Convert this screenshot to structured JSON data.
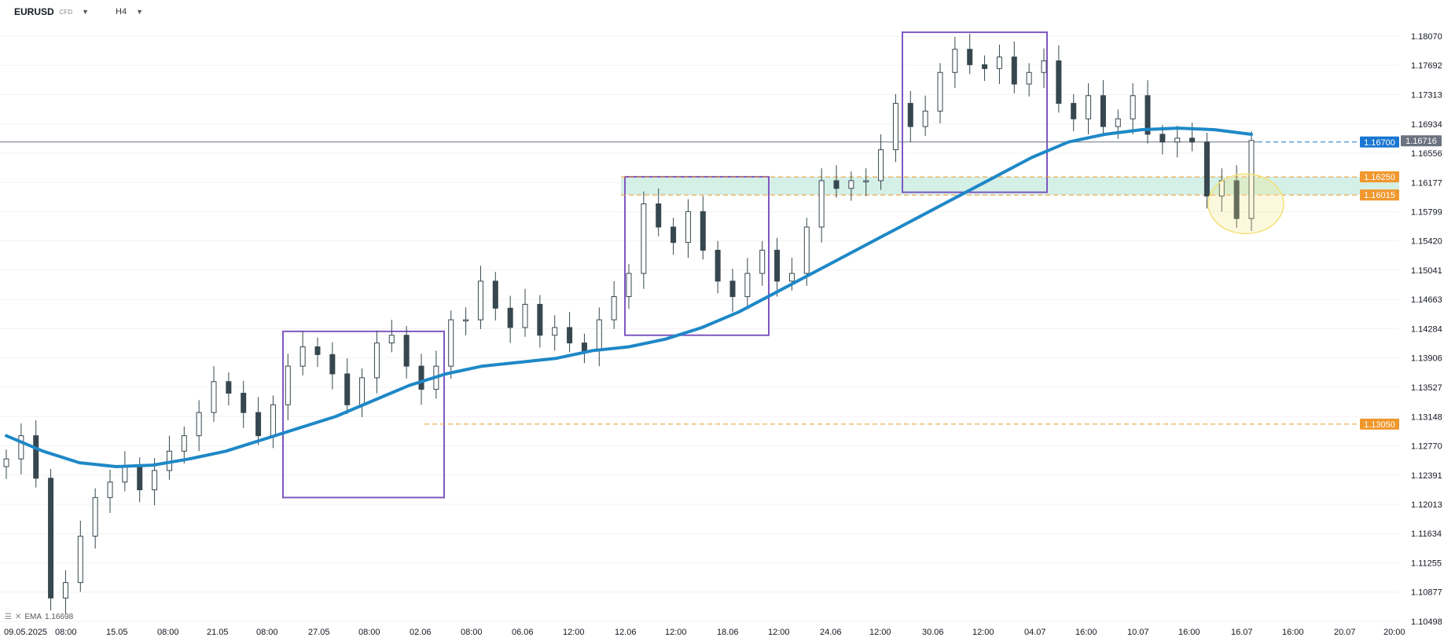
{
  "header": {
    "symbol": "EURUSD",
    "symbol_type": "CFD",
    "timeframe": "H4"
  },
  "indicator": {
    "name": "EMA",
    "value": "1.16698"
  },
  "colors": {
    "ema": "#1e88c7",
    "box": "#7e57c2",
    "level": "#f0972d",
    "zone": "#bfe8d8",
    "candle_body": "#37474f",
    "candle_up": "#ffffff",
    "current_price": "#6b7280",
    "last_price_tag": "#1976d2",
    "highlight": "#f4e27a"
  },
  "chart_data": {
    "type": "candlestick",
    "x_ticks": [
      "09.05.2025",
      "08:00",
      "15.05",
      "08:00",
      "21.05",
      "08:00",
      "27.05",
      "08:00",
      "02.06",
      "08:00",
      "06.06",
      "12:00",
      "12.06",
      "12:00",
      "18.06",
      "12:00",
      "24.06",
      "12:00",
      "30.06",
      "12:00",
      "04.07",
      "16:00",
      "10.07",
      "16:00",
      "16.07",
      "16:00",
      "20.07",
      "20:00"
    ],
    "y_ticks": [
      "1.18070",
      "1.17692",
      "1.17313",
      "1.16934",
      "1.16556",
      "1.16177",
      "1.15799",
      "1.15420",
      "1.15041",
      "1.14663",
      "1.14284",
      "1.13906",
      "1.13527",
      "1.13148",
      "1.12770",
      "1.12391",
      "1.12013",
      "1.11634",
      "1.11255",
      "1.10877",
      "1.10498"
    ],
    "ylim": [
      1.10498,
      1.1807
    ],
    "close_price": [
      1.126,
      1.129,
      1.1235,
      1.108,
      1.11,
      1.116,
      1.121,
      1.123,
      1.125,
      1.122,
      1.1245,
      1.127,
      1.129,
      1.132,
      1.136,
      1.1345,
      1.132,
      1.129,
      1.133,
      1.138,
      1.1405,
      1.1395,
      1.137,
      1.133,
      1.1365,
      1.141,
      1.142,
      1.138,
      1.135,
      1.138,
      1.144,
      1.144,
      1.149,
      1.1455,
      1.143,
      1.146,
      1.142,
      1.143,
      1.141,
      1.14,
      1.144,
      1.147,
      1.15,
      1.159,
      1.156,
      1.154,
      1.158,
      1.153,
      1.149,
      1.147,
      1.15,
      1.153,
      1.149,
      1.15,
      1.156,
      1.162,
      1.161,
      1.162,
      1.162,
      1.166,
      1.172,
      1.169,
      1.171,
      1.176,
      1.179,
      1.177,
      1.1765,
      1.178,
      1.1745,
      1.176,
      1.1775,
      1.172,
      1.17,
      1.173,
      1.169,
      1.17,
      1.173,
      1.168,
      1.167,
      1.1675,
      1.167,
      1.16,
      1.162,
      1.1571,
      1.1672
    ],
    "levels": [
      "1.16250",
      "1.16015",
      "1.13050"
    ],
    "current_price": "1.16700",
    "last_price": "1.16716",
    "ema_values": [
      1.129,
      1.127,
      1.1255,
      1.125,
      1.1252,
      1.126,
      1.127,
      1.1285,
      1.13,
      1.1315,
      1.1335,
      1.1355,
      1.137,
      1.138,
      1.1385,
      1.139,
      1.14,
      1.1405,
      1.1415,
      1.143,
      1.145,
      1.1475,
      1.15,
      1.1525,
      1.155,
      1.1575,
      1.16,
      1.1625,
      1.165,
      1.167,
      1.168,
      1.1686,
      1.1688,
      1.1686,
      1.168
    ]
  }
}
